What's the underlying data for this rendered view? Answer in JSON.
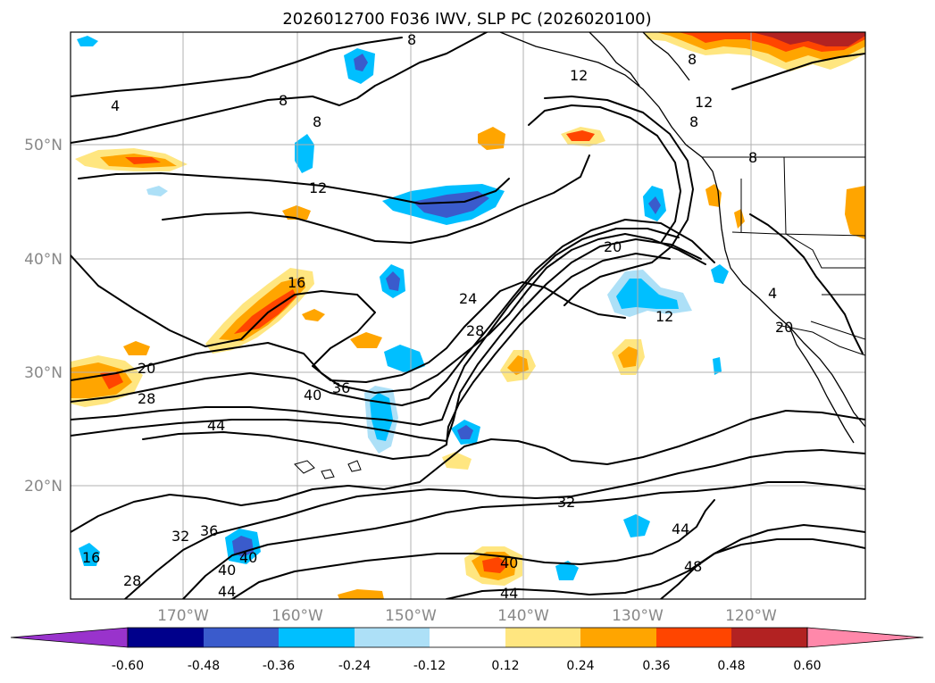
{
  "title": "2026012700 F036 IWV, SLP PC (2026020100)",
  "map": {
    "lat_labels": [
      "50°N",
      "40°N",
      "30°N",
      "20°N"
    ],
    "lon_labels": [
      "170°W",
      "160°W",
      "150°W",
      "140°W",
      "130°W",
      "120°W"
    ]
  },
  "colorbar": {
    "ticks": [
      "-0.60",
      "-0.48",
      "-0.36",
      "-0.24",
      "-0.12",
      "0.12",
      "0.24",
      "0.36",
      "0.48",
      "0.60"
    ],
    "colors": {
      "under": "#9933cc",
      "neg_060": "#00008b",
      "neg_048": "#3a5bcc",
      "neg_036": "#00bfff",
      "neg_024": "#ade0f7",
      "neutral": "#ffffff",
      "pos_012": "#ffe680",
      "pos_024": "#ffa500",
      "pos_036": "#ff4500",
      "pos_048": "#b22222",
      "over": "#ff88aa"
    }
  },
  "contour_labels": [
    "8",
    "12",
    "4",
    "8",
    "8",
    "8",
    "12",
    "8",
    "12",
    "16",
    "20",
    "24",
    "28",
    "20",
    "12",
    "8",
    "4",
    "20",
    "28",
    "40",
    "36",
    "44",
    "32",
    "36",
    "40",
    "40",
    "44",
    "28",
    "16",
    "32",
    "40",
    "44",
    "44",
    "48"
  ]
}
